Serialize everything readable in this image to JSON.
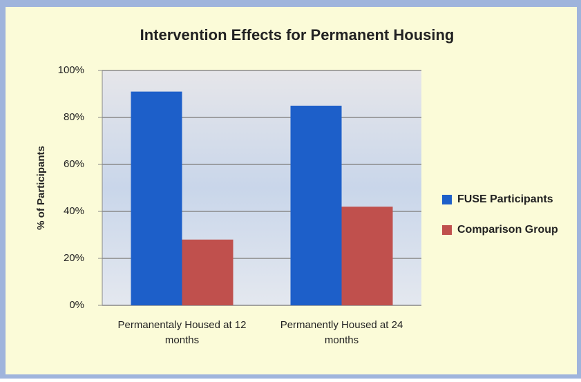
{
  "chart_data": {
    "type": "bar",
    "title": "Intervention Effects for Permanent Housing",
    "y_label": "% of Participants",
    "categories": [
      "Permanentaly Housed at 12 months",
      "Permanently Housed at 24 months"
    ],
    "series": [
      {
        "name": "FUSE Participants",
        "color": "#1d5fc9",
        "values": [
          91,
          85
        ]
      },
      {
        "name": "Comparison Group",
        "color": "#c0504d",
        "values": [
          28,
          42
        ]
      }
    ],
    "ylim": [
      0,
      100
    ],
    "yticks": [
      {
        "value": 0,
        "label": "0%"
      },
      {
        "value": 20,
        "label": "20%"
      },
      {
        "value": 40,
        "label": "40%"
      },
      {
        "value": 60,
        "label": "60%"
      },
      {
        "value": 80,
        "label": "80%"
      },
      {
        "value": 100,
        "label": "100%"
      }
    ],
    "grid": true,
    "legend": "right"
  }
}
